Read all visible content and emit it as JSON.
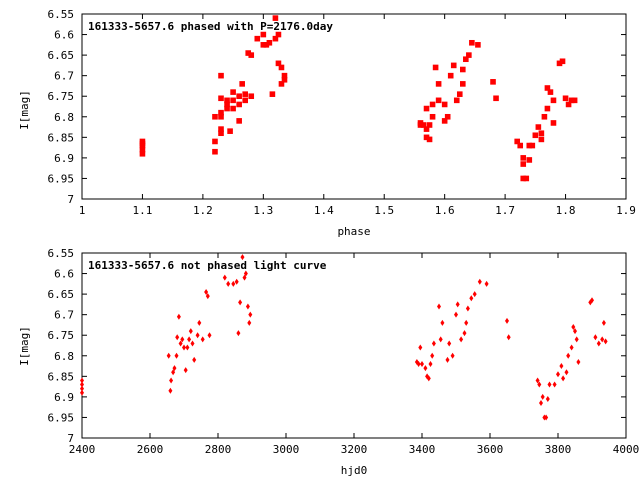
{
  "chart_data": [
    {
      "type": "scatter",
      "title": "161333-5657.6 phased with P=2176.0day",
      "xlabel": "phase",
      "ylabel": "I[mag]",
      "xlim": [
        1.0,
        1.9
      ],
      "ylim": [
        6.55,
        7.0
      ],
      "y_inverted": true,
      "grid": false,
      "xticks": [
        "1",
        "1.1",
        "1.2",
        "1.3",
        "1.4",
        "1.5",
        "1.6",
        "1.7",
        "1.8",
        "1.9"
      ],
      "yticks": [
        "6.55",
        "6.6",
        "6.65",
        "6.7",
        "6.75",
        "6.8",
        "6.85",
        "6.9",
        "6.95",
        "7"
      ],
      "marker_color": "#ff0000",
      "points": [
        [
          1.1,
          6.86
        ],
        [
          1.1,
          6.87
        ],
        [
          1.1,
          6.88
        ],
        [
          1.1,
          6.89
        ],
        [
          1.1,
          6.865
        ],
        [
          1.22,
          6.8
        ],
        [
          1.22,
          6.885
        ],
        [
          1.22,
          6.86
        ],
        [
          1.23,
          6.84
        ],
        [
          1.23,
          6.83
        ],
        [
          1.23,
          6.8
        ],
        [
          1.23,
          6.79
        ],
        [
          1.23,
          6.755
        ],
        [
          1.23,
          6.7
        ],
        [
          1.24,
          6.77
        ],
        [
          1.24,
          6.76
        ],
        [
          1.24,
          6.78
        ],
        [
          1.245,
          6.835
        ],
        [
          1.25,
          6.78
        ],
        [
          1.25,
          6.76
        ],
        [
          1.25,
          6.74
        ],
        [
          1.26,
          6.77
        ],
        [
          1.26,
          6.81
        ],
        [
          1.26,
          6.75
        ],
        [
          1.265,
          6.72
        ],
        [
          1.27,
          6.76
        ],
        [
          1.27,
          6.745
        ],
        [
          1.275,
          6.645
        ],
        [
          1.28,
          6.65
        ],
        [
          1.28,
          6.75
        ],
        [
          1.29,
          6.61
        ],
        [
          1.3,
          6.625
        ],
        [
          1.3,
          6.6
        ],
        [
          1.305,
          6.625
        ],
        [
          1.31,
          6.62
        ],
        [
          1.315,
          6.745
        ],
        [
          1.32,
          6.56
        ],
        [
          1.32,
          6.61
        ],
        [
          1.325,
          6.6
        ],
        [
          1.325,
          6.67
        ],
        [
          1.33,
          6.68
        ],
        [
          1.33,
          6.72
        ],
        [
          1.335,
          6.7
        ],
        [
          1.335,
          6.71
        ],
        [
          1.56,
          6.815
        ],
        [
          1.56,
          6.82
        ],
        [
          1.565,
          6.82
        ],
        [
          1.57,
          6.83
        ],
        [
          1.57,
          6.78
        ],
        [
          1.57,
          6.85
        ],
        [
          1.575,
          6.855
        ],
        [
          1.575,
          6.82
        ],
        [
          1.58,
          6.8
        ],
        [
          1.58,
          6.77
        ],
        [
          1.585,
          6.68
        ],
        [
          1.59,
          6.76
        ],
        [
          1.59,
          6.72
        ],
        [
          1.6,
          6.81
        ],
        [
          1.6,
          6.77
        ],
        [
          1.605,
          6.8
        ],
        [
          1.61,
          6.7
        ],
        [
          1.615,
          6.675
        ],
        [
          1.62,
          6.76
        ],
        [
          1.625,
          6.745
        ],
        [
          1.63,
          6.72
        ],
        [
          1.63,
          6.685
        ],
        [
          1.635,
          6.66
        ],
        [
          1.64,
          6.65
        ],
        [
          1.645,
          6.62
        ],
        [
          1.655,
          6.625
        ],
        [
          1.68,
          6.715
        ],
        [
          1.685,
          6.755
        ],
        [
          1.72,
          6.86
        ],
        [
          1.725,
          6.87
        ],
        [
          1.73,
          6.9
        ],
        [
          1.73,
          6.915
        ],
        [
          1.73,
          6.95
        ],
        [
          1.735,
          6.95
        ],
        [
          1.74,
          6.905
        ],
        [
          1.74,
          6.87
        ],
        [
          1.745,
          6.87
        ],
        [
          1.75,
          6.845
        ],
        [
          1.755,
          6.825
        ],
        [
          1.76,
          6.855
        ],
        [
          1.76,
          6.84
        ],
        [
          1.765,
          6.8
        ],
        [
          1.77,
          6.78
        ],
        [
          1.77,
          6.73
        ],
        [
          1.775,
          6.74
        ],
        [
          1.78,
          6.76
        ],
        [
          1.78,
          6.815
        ],
        [
          1.79,
          6.67
        ],
        [
          1.795,
          6.665
        ],
        [
          1.8,
          6.755
        ],
        [
          1.805,
          6.77
        ],
        [
          1.81,
          6.76
        ],
        [
          1.815,
          6.76
        ]
      ]
    },
    {
      "type": "scatter",
      "title": "161333-5657.6 not phased light curve",
      "xlabel": "hjd0",
      "ylabel": "I[mag]",
      "xlim": [
        2400,
        4000
      ],
      "ylim": [
        6.55,
        7.0
      ],
      "y_inverted": true,
      "grid": false,
      "xticks": [
        "2400",
        "2600",
        "2800",
        "3000",
        "3200",
        "3400",
        "3600",
        "3800",
        "4000"
      ],
      "yticks": [
        "6.55",
        "6.6",
        "6.65",
        "6.7",
        "6.75",
        "6.8",
        "6.85",
        "6.9",
        "6.95",
        "7"
      ],
      "marker_color": "#ff0000",
      "points": [
        [
          2400,
          6.86
        ],
        [
          2400,
          6.87
        ],
        [
          2400,
          6.88
        ],
        [
          2400,
          6.89
        ],
        [
          2655,
          6.8
        ],
        [
          2660,
          6.885
        ],
        [
          2662,
          6.86
        ],
        [
          2668,
          6.84
        ],
        [
          2672,
          6.83
        ],
        [
          2678,
          6.8
        ],
        [
          2680,
          6.755
        ],
        [
          2685,
          6.705
        ],
        [
          2690,
          6.77
        ],
        [
          2695,
          6.76
        ],
        [
          2700,
          6.78
        ],
        [
          2705,
          6.835
        ],
        [
          2710,
          6.78
        ],
        [
          2715,
          6.76
        ],
        [
          2720,
          6.74
        ],
        [
          2725,
          6.77
        ],
        [
          2730,
          6.81
        ],
        [
          2740,
          6.75
        ],
        [
          2745,
          6.72
        ],
        [
          2755,
          6.76
        ],
        [
          2765,
          6.645
        ],
        [
          2770,
          6.655
        ],
        [
          2775,
          6.75
        ],
        [
          2820,
          6.61
        ],
        [
          2830,
          6.625
        ],
        [
          2845,
          6.625
        ],
        [
          2855,
          6.62
        ],
        [
          2860,
          6.745
        ],
        [
          2865,
          6.67
        ],
        [
          2872,
          6.56
        ],
        [
          2878,
          6.61
        ],
        [
          2882,
          6.6
        ],
        [
          2888,
          6.68
        ],
        [
          2892,
          6.72
        ],
        [
          2895,
          6.7
        ],
        [
          3385,
          6.815
        ],
        [
          3390,
          6.82
        ],
        [
          3395,
          6.78
        ],
        [
          3400,
          6.82
        ],
        [
          3410,
          6.83
        ],
        [
          3415,
          6.85
        ],
        [
          3420,
          6.855
        ],
        [
          3425,
          6.82
        ],
        [
          3430,
          6.8
        ],
        [
          3435,
          6.77
        ],
        [
          3450,
          6.68
        ],
        [
          3455,
          6.76
        ],
        [
          3460,
          6.72
        ],
        [
          3475,
          6.81
        ],
        [
          3480,
          6.77
        ],
        [
          3490,
          6.8
        ],
        [
          3500,
          6.7
        ],
        [
          3505,
          6.675
        ],
        [
          3515,
          6.76
        ],
        [
          3525,
          6.745
        ],
        [
          3530,
          6.72
        ],
        [
          3535,
          6.685
        ],
        [
          3545,
          6.66
        ],
        [
          3555,
          6.65
        ],
        [
          3570,
          6.62
        ],
        [
          3590,
          6.625
        ],
        [
          3650,
          6.715
        ],
        [
          3655,
          6.755
        ],
        [
          3740,
          6.86
        ],
        [
          3745,
          6.87
        ],
        [
          3750,
          6.915
        ],
        [
          3755,
          6.9
        ],
        [
          3760,
          6.95
        ],
        [
          3765,
          6.95
        ],
        [
          3770,
          6.905
        ],
        [
          3775,
          6.87
        ],
        [
          3790,
          6.87
        ],
        [
          3800,
          6.845
        ],
        [
          3810,
          6.825
        ],
        [
          3815,
          6.855
        ],
        [
          3825,
          6.84
        ],
        [
          3830,
          6.8
        ],
        [
          3840,
          6.78
        ],
        [
          3845,
          6.73
        ],
        [
          3850,
          6.74
        ],
        [
          3855,
          6.76
        ],
        [
          3860,
          6.815
        ],
        [
          3895,
          6.67
        ],
        [
          3900,
          6.665
        ],
        [
          3910,
          6.755
        ],
        [
          3920,
          6.77
        ],
        [
          3930,
          6.76
        ],
        [
          3935,
          6.72
        ],
        [
          3940,
          6.765
        ]
      ]
    }
  ]
}
